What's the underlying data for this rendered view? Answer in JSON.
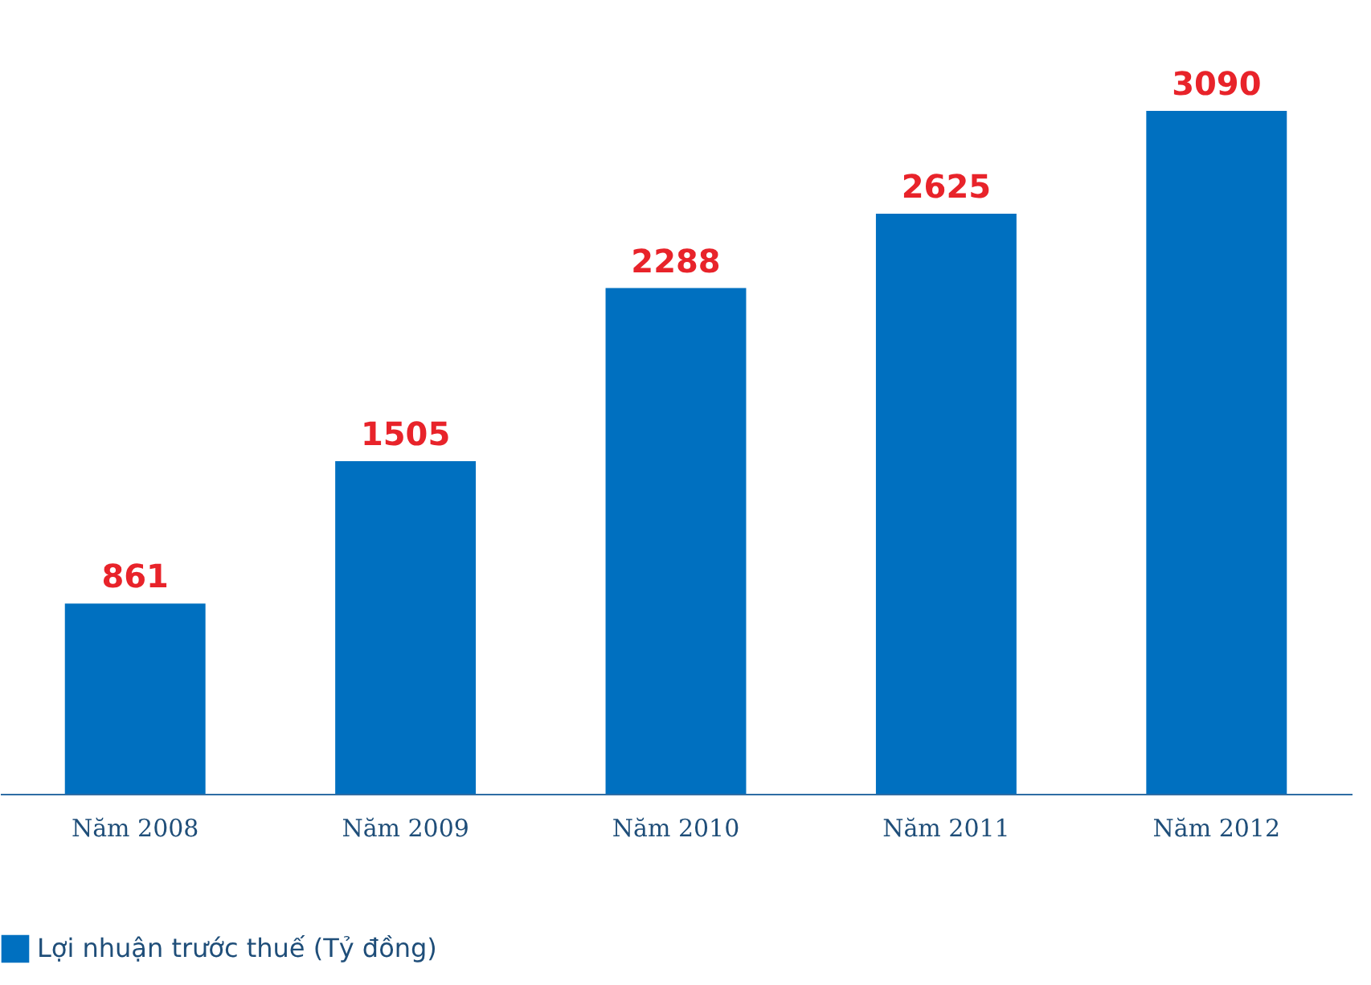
{
  "chart_data": {
    "type": "bar",
    "categories": [
      "Năm 2008",
      "Năm 2009",
      "Năm 2010",
      "Năm 2011",
      "Năm 2012"
    ],
    "series": [
      {
        "name": "Lợi nhuận trước thuế (Tỷ đồng)",
        "color": "#0070c0",
        "values": [
          861,
          1505,
          2288,
          2625,
          3090
        ]
      }
    ],
    "data_labels": true,
    "legend": "bottom",
    "grid": false
  }
}
